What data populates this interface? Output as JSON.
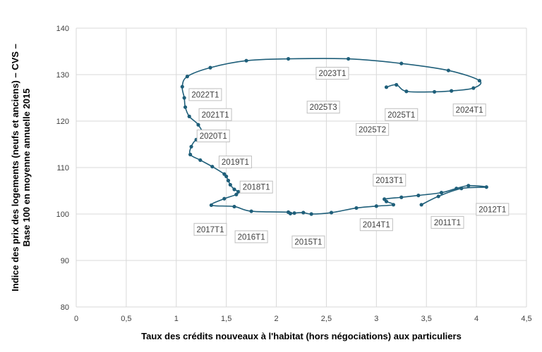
{
  "chart_data": {
    "type": "line",
    "title": "",
    "xlabel": "Taux des crédits nouveaux à l'habitat (hors négociations) aux particuliers",
    "ylabel_line1": "Indice des prix des logements (neufs et anciens) – CVS –",
    "ylabel_line2": "Base 100 en moyenne annuelle 2015",
    "xlim": [
      0,
      4.5
    ],
    "ylim": [
      80,
      140
    ],
    "x_ticks": [
      "0",
      "0,5",
      "1",
      "1,5",
      "2",
      "2,5",
      "3",
      "3,5",
      "4",
      "4,5"
    ],
    "y_ticks": [
      "80",
      "90",
      "100",
      "110",
      "120",
      "130",
      "140"
    ],
    "grid": "horizontal and vertical",
    "line_color": "#1f5f7a",
    "series": [
      {
        "points": [
          [
            3.45,
            102.0
          ],
          [
            3.62,
            103.8
          ],
          [
            3.85,
            105.5
          ],
          [
            4.1,
            105.8
          ],
          [
            3.92,
            106.1
          ],
          [
            3.8,
            105.5
          ],
          [
            3.65,
            104.6
          ],
          [
            3.42,
            104.0
          ],
          [
            3.25,
            103.6
          ],
          [
            3.08,
            103.2
          ],
          [
            3.1,
            102.7
          ],
          [
            3.17,
            102.0
          ],
          [
            3.0,
            101.7
          ],
          [
            2.8,
            101.3
          ],
          [
            2.55,
            100.3
          ],
          [
            2.35,
            100.0
          ],
          [
            2.27,
            100.3
          ],
          [
            2.18,
            100.2
          ],
          [
            2.14,
            100.1
          ],
          [
            2.12,
            100.4
          ],
          [
            1.75,
            100.6
          ],
          [
            1.58,
            101.6
          ],
          [
            1.35,
            101.9
          ],
          [
            1.48,
            103.3
          ],
          [
            1.6,
            104.2
          ],
          [
            1.62,
            104.8
          ],
          [
            1.58,
            105.3
          ],
          [
            1.54,
            106.3
          ],
          [
            1.52,
            107.2
          ],
          [
            1.5,
            108.1
          ],
          [
            1.48,
            108.6
          ],
          [
            1.36,
            110.2
          ],
          [
            1.24,
            111.6
          ],
          [
            1.14,
            112.8
          ],
          [
            1.15,
            114.5
          ],
          [
            1.2,
            116.0
          ],
          [
            1.28,
            116.5
          ],
          [
            1.22,
            119.2
          ],
          [
            1.13,
            121.0
          ],
          [
            1.09,
            123.0
          ],
          [
            1.08,
            125.0
          ],
          [
            1.06,
            127.4
          ],
          [
            1.11,
            129.6
          ],
          [
            1.34,
            131.5
          ],
          [
            1.7,
            133.0
          ],
          [
            2.12,
            133.4
          ],
          [
            2.72,
            133.4
          ],
          [
            3.25,
            132.4
          ],
          [
            3.72,
            130.9
          ],
          [
            4.03,
            128.7
          ],
          [
            3.97,
            127.1
          ],
          [
            3.75,
            126.5
          ],
          [
            3.58,
            126.3
          ],
          [
            3.3,
            126.4
          ],
          [
            3.2,
            127.8
          ],
          [
            3.1,
            127.3
          ]
        ]
      }
    ],
    "annotations": [
      {
        "text": "2012T1",
        "x": 4.16,
        "y": 101.0,
        "ax": 4.05,
        "ay": 102.2
      },
      {
        "text": "2011T1",
        "x": 3.71,
        "y": 98.2,
        "ax": 3.55,
        "ay": 99.3
      },
      {
        "text": "2013T1",
        "x": 3.13,
        "y": 107.3,
        "ax": 3.0,
        "ay": 108.1
      },
      {
        "text": "2014T1",
        "x": 3.0,
        "y": 97.7,
        "ax": 2.93,
        "ay": 99.0
      },
      {
        "text": "2015T1",
        "x": 2.32,
        "y": 94.0,
        "ax": 2.3,
        "ay": 95.1
      },
      {
        "text": "2016T1",
        "x": 1.75,
        "y": 95.1,
        "ax": 1.75,
        "ay": 96.4
      },
      {
        "text": "2017T1",
        "x": 1.34,
        "y": 96.7,
        "ax": 1.27,
        "ay": 97.9
      },
      {
        "text": "2018T1",
        "x": 1.8,
        "y": 105.8,
        "ax": 1.7,
        "ay": 106.6
      },
      {
        "text": "2019T1",
        "x": 1.59,
        "y": 111.2,
        "ax": 1.52,
        "ay": 112.0
      },
      {
        "text": "2020T1",
        "x": 1.37,
        "y": 116.8,
        "ax": 1.32,
        "ay": 117.7
      },
      {
        "text": "2021T1",
        "x": 1.39,
        "y": 121.4,
        "ax": 1.33,
        "ay": 122.2
      },
      {
        "text": "2022T1",
        "x": 1.29,
        "y": 125.7,
        "ax": 1.28,
        "ay": 126.7
      },
      {
        "text": "2023T1",
        "x": 2.56,
        "y": 130.3,
        "ax": 2.43,
        "ay": 130.8
      },
      {
        "text": "2024T1",
        "x": 3.93,
        "y": 122.4,
        "ax": 3.86,
        "ay": 123.3
      },
      {
        "text": "2025T1",
        "x": 3.25,
        "y": 121.4,
        "ax": 3.26,
        "ay": 122.4
      },
      {
        "text": "2025T2",
        "x": 2.96,
        "y": 118.2,
        "ax": 2.9,
        "ay": 119.2
      },
      {
        "text": "2025T3",
        "x": 2.47,
        "y": 123.0,
        "ax": 2.43,
        "ay": 124.0
      }
    ]
  }
}
